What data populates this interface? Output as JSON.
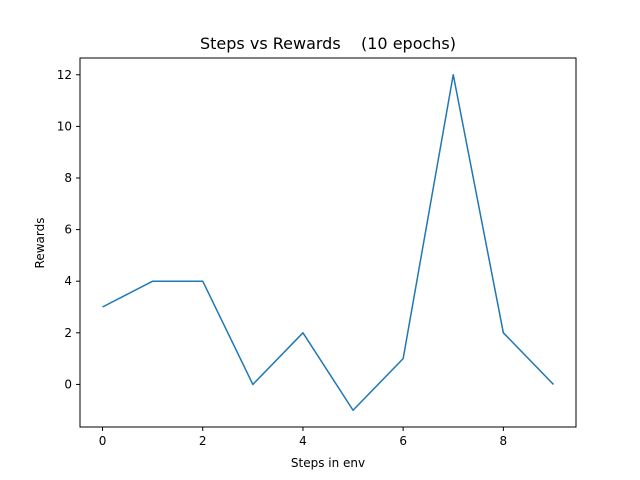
{
  "chart_data": {
    "type": "line",
    "title": "Steps vs Rewards    (10 epochs)",
    "xlabel": "Steps in env",
    "ylabel": "Rewards",
    "x": [
      0,
      1,
      2,
      3,
      4,
      5,
      6,
      7,
      8,
      9
    ],
    "series": [
      {
        "values": [
          3,
          4,
          4,
          0,
          2,
          -1,
          1,
          12,
          2,
          0
        ],
        "color": "#1f77b4"
      }
    ],
    "xlim": [
      -0.45,
      9.45
    ],
    "ylim": [
      -1.65,
      12.65
    ],
    "xticks": [
      0,
      2,
      4,
      6,
      8
    ],
    "xtick_labels": [
      "0",
      "2",
      "4",
      "6",
      "8"
    ],
    "yticks": [
      0,
      2,
      4,
      6,
      8,
      10,
      12
    ],
    "ytick_labels": [
      "0",
      "2",
      "4",
      "6",
      "8",
      "10",
      "12"
    ],
    "grid": false,
    "legend": "none"
  }
}
